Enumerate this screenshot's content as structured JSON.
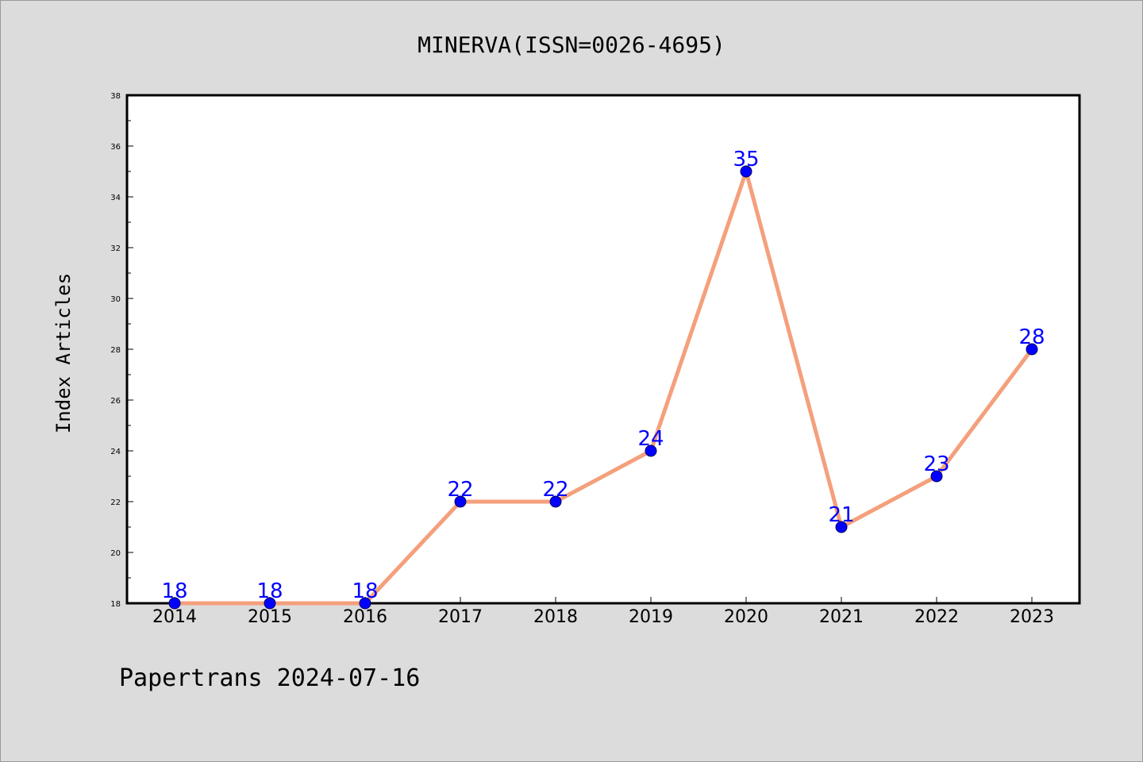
{
  "chart_data": {
    "type": "line",
    "title": "MINERVA(ISSN=0026-4695)",
    "xlabel": "",
    "ylabel": "Index Articles",
    "categories": [
      "2014",
      "2015",
      "2016",
      "2017",
      "2018",
      "2019",
      "2020",
      "2021",
      "2022",
      "2023"
    ],
    "series": [
      {
        "values": [
          18,
          18,
          18,
          22,
          22,
          24,
          35,
          21,
          23,
          28
        ]
      }
    ],
    "ylim": [
      18,
      38
    ],
    "yticks": [
      "18",
      "20",
      "22",
      "24",
      "26",
      "28",
      "30",
      "32",
      "34",
      "36",
      "38"
    ],
    "data_labels": [
      "18",
      "18",
      "18",
      "22",
      "22",
      "24",
      "35",
      "21",
      "23",
      "28"
    ],
    "grid": false,
    "line_color": "#f4a07c",
    "marker_color": "#0000ff",
    "label_color": "#0000ff"
  },
  "footer": "Papertrans 2024-07-16"
}
